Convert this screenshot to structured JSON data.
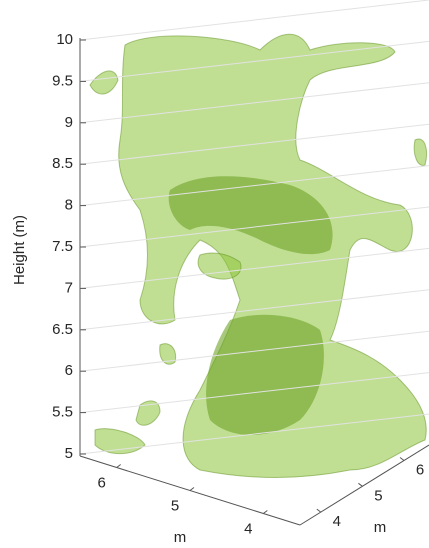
{
  "chart_data": {
    "type": "isosurface",
    "color": "#8cc43a",
    "grid": true,
    "zlabel": "Height (m)",
    "xlabel": "m",
    "ylabel": "m",
    "zlim": [
      5,
      10
    ],
    "zticks": [
      5,
      5.5,
      6,
      6.5,
      7,
      7.5,
      8,
      8.5,
      9,
      9.5,
      10
    ],
    "xlim": [
      3.5,
      6.5
    ],
    "xticks": [
      6,
      5,
      4
    ],
    "ylim": [
      3.5,
      6.6
    ],
    "yticks": [
      4,
      5,
      6
    ]
  }
}
